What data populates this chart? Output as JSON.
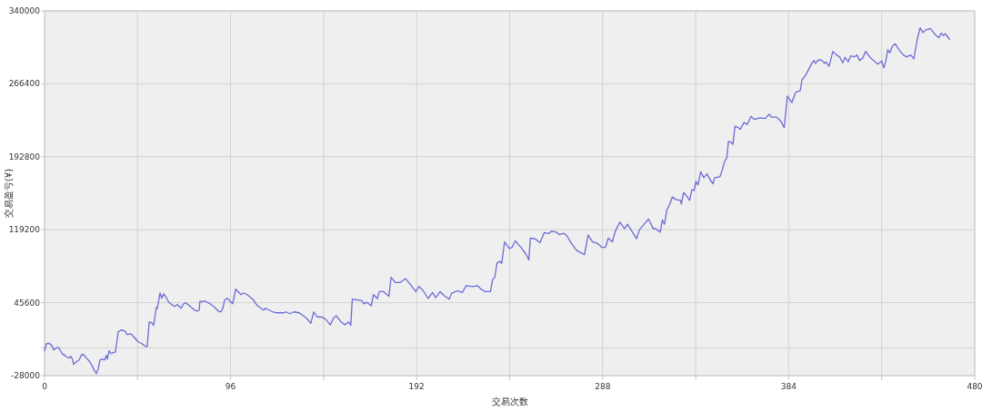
{
  "chart_data": {
    "type": "line",
    "xlabel": "交易次数",
    "ylabel": "交易盈亏(¥)",
    "color": "#6b6bd6",
    "grid": true,
    "xlim": [
      0,
      480
    ],
    "ylim": [
      -28000,
      340000
    ],
    "xticks": [
      0,
      {
        "value": 48,
        "label": null
      },
      96,
      {
        "value": 144,
        "label": null
      },
      192,
      {
        "value": 240,
        "label": null
      },
      288,
      {
        "value": 336,
        "label": null
      },
      384,
      {
        "value": 432,
        "label": null
      },
      480
    ],
    "yticks": [
      -28000,
      {
        "value": 0,
        "label": null
      },
      45600,
      119200,
      192800,
      266400,
      340000
    ],
    "x": [
      0,
      1,
      2.3,
      3.8,
      4.7,
      6,
      7,
      8,
      9.4,
      10,
      11,
      12.7,
      13.6,
      14.5,
      15,
      16.4,
      17.8,
      19.2,
      20,
      21.6,
      23,
      24.4,
      25.8,
      26.7,
      27.7,
      28.6,
      30,
      31,
      31.9,
      32.4,
      33.3,
      34.3,
      35.2,
      36.6,
      38,
      39.4,
      41.3,
      42.7,
      44.1,
      45,
      48.3,
      50.2,
      52.1,
      53,
      54,
      55.4,
      56.3,
      57.7,
      58.2,
      59.6,
      60.5,
      61.5,
      62.4,
      64.3,
      67.1,
      68.5,
      69.5,
      70.4,
      71.8,
      72.8,
      74.6,
      77.4,
      78.8,
      79.8,
      80.2,
      81.2,
      82.6,
      83.6,
      85.4,
      87.8,
      89.6,
      91,
      92,
      92.9,
      94.3,
      95.7,
      97.1,
      98.6,
      100,
      101.4,
      102.8,
      103.7,
      105.1,
      107.5,
      109.8,
      111.7,
      113.1,
      114,
      115.9,
      117.8,
      119.7,
      121.5,
      123.4,
      124.4,
      126.7,
      128.6,
      131.4,
      133.3,
      135.2,
      137.4,
      138.9,
      140.5,
      143.6,
      145.2,
      147.5,
      149.1,
      150.6,
      153,
      155,
      156.9,
      158,
      158.8,
      160.8,
      163.9,
      164.7,
      166.3,
      168.6,
      169.7,
      171.7,
      172.8,
      174.9,
      177.7,
      178.8,
      181.1,
      183.5,
      186.3,
      188.6,
      191.6,
      193.2,
      195.2,
      197.9,
      200.2,
      201.9,
      204.1,
      206.2,
      208.8,
      210.1,
      213.2,
      215.5,
      217.6,
      221,
      223.4,
      224.9,
      227.3,
      230.1,
      231.2,
      232.3,
      233.5,
      235.1,
      235.9,
      237.4,
      239.8,
      241.3,
      242.9,
      246,
      248.3,
      249.9,
      250.7,
      253,
      255.7,
      257.8,
      260.1,
      261.7,
      264,
      265.6,
      268,
      269.5,
      271.8,
      274.5,
      278.6,
      280.5,
      282.8,
      285.2,
      287.5,
      289.5,
      290.9,
      293,
      294.5,
      296.9,
      299.3,
      300.8,
      303.1,
      305.5,
      307,
      309.4,
      311.7,
      314.1,
      314.9,
      317.7,
      318.8,
      319.9,
      321.1,
      322.7,
      323.9,
      325.8,
      328.2,
      328.6,
      329.8,
      331.3,
      332.9,
      334,
      335.2,
      336.1,
      337.2,
      338.6,
      340.2,
      341.8,
      343.8,
      344.9,
      345.8,
      348.5,
      349.6,
      350.9,
      352.1,
      352.9,
      354,
      355.2,
      356.3,
      357.9,
      359,
      361,
      362.6,
      364.6,
      366.2,
      369.3,
      372,
      373.9,
      375.1,
      377.8,
      379.8,
      381.7,
      383.3,
      385.6,
      387.6,
      390,
      390.8,
      393.1,
      395.9,
      397,
      397.8,
      399.4,
      401.2,
      402.5,
      403.2,
      404.8,
      406.8,
      408.7,
      410.3,
      411.9,
      413.1,
      414.7,
      416,
      417.9,
      419.2,
      420.6,
      422.2,
      423.7,
      425.8,
      427.7,
      430,
      432,
      433.1,
      434.2,
      435.1,
      436.2,
      437.5,
      439,
      440.9,
      443.2,
      444.8,
      447,
      448.6,
      450.2,
      451.8,
      453.3,
      454.9,
      457.2,
      459.6,
      461.5,
      462.7,
      463.8,
      464.8,
      467
    ],
    "values": [
      -3000,
      4300,
      4600,
      2500,
      -2100,
      0,
      600,
      -2100,
      -6700,
      -6700,
      -8500,
      -10300,
      -8500,
      -12200,
      -16700,
      -14000,
      -12200,
      -6700,
      -6700,
      -10300,
      -13100,
      -17600,
      -23100,
      -25900,
      -21300,
      -12200,
      -11300,
      -12200,
      -7600,
      -11300,
      -3000,
      -5800,
      -4900,
      -4000,
      16200,
      18000,
      17100,
      13400,
      14300,
      13400,
      6100,
      4300,
      1500,
      1500,
      26200,
      25300,
      22600,
      40900,
      40000,
      55500,
      50000,
      54600,
      51900,
      45500,
      41800,
      43600,
      41800,
      40000,
      44500,
      45500,
      42700,
      38100,
      37200,
      38100,
      47300,
      46400,
      47300,
      46400,
      44500,
      40900,
      37200,
      36300,
      39900,
      48200,
      50000,
      47300,
      44500,
      59200,
      56400,
      53700,
      55500,
      54600,
      52800,
      49100,
      42700,
      40000,
      38100,
      40000,
      38100,
      36300,
      35400,
      35400,
      35400,
      36300,
      34500,
      36300,
      35400,
      32700,
      29900,
      24700,
      36300,
      31500,
      30800,
      28400,
      23200,
      30200,
      32400,
      26200,
      23200,
      26200,
      22600,
      49100,
      48500,
      47600,
      44500,
      46000,
      42400,
      53700,
      49800,
      56700,
      56700,
      52100,
      71100,
      65900,
      65900,
      69900,
      64400,
      56700,
      61900,
      58300,
      49800,
      55800,
      50700,
      56700,
      52800,
      49100,
      55200,
      57600,
      55800,
      62800,
      61900,
      62800,
      59800,
      56700,
      56700,
      68900,
      71100,
      85700,
      87300,
      85100,
      107000,
      100300,
      101500,
      107900,
      101000,
      94900,
      88700,
      110700,
      110100,
      106100,
      116200,
      115300,
      117700,
      116800,
      114300,
      115600,
      113200,
      105600,
      98500,
      94000,
      113800,
      107000,
      105600,
      101500,
      101500,
      110700,
      107000,
      117700,
      126900,
      120200,
      124800,
      117700,
      110100,
      119300,
      124800,
      129900,
      120200,
      120700,
      116800,
      129000,
      124800,
      139000,
      145200,
      152200,
      149700,
      148800,
      145200,
      156800,
      153400,
      148800,
      159500,
      158900,
      168000,
      164400,
      177800,
      171700,
      175600,
      168700,
      165600,
      171700,
      172600,
      178700,
      187900,
      191800,
      208300,
      207700,
      205300,
      223600,
      222300,
      220500,
      227500,
      225400,
      233600,
      230500,
      232100,
      231400,
      235700,
      232700,
      232700,
      229100,
      222300,
      254000,
      247400,
      258000,
      259500,
      270200,
      276300,
      287000,
      290000,
      287000,
      290600,
      290000,
      287000,
      288500,
      284000,
      299100,
      295500,
      293600,
      287600,
      293100,
      288500,
      294600,
      293600,
      295500,
      290000,
      292500,
      299100,
      293600,
      290000,
      286300,
      289400,
      282400,
      290000,
      300700,
      297700,
      304600,
      306800,
      300700,
      295500,
      293600,
      295500,
      291600,
      309800,
      322900,
      318100,
      321100,
      322000,
      316000,
      313000,
      317600,
      315100,
      316900,
      311400
    ]
  }
}
